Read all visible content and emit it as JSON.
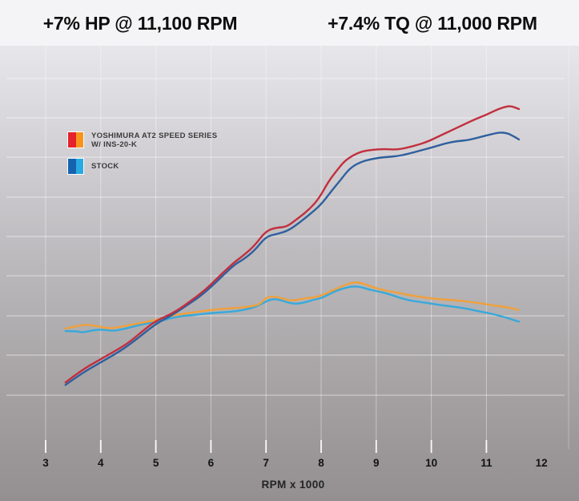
{
  "header": {
    "hp_gain": "+7% HP @ 11,100 RPM",
    "tq_gain": "+7.4% TQ @ 11,000 RPM"
  },
  "legend": {
    "items": [
      {
        "label_line1": "YOSHIMURA AT2 SPEED SERIES",
        "label_line2": "W/ INS-20-K",
        "swatch_left": "#e5212b",
        "swatch_right": "#f7941d"
      },
      {
        "label_line1": "STOCK",
        "label_line2": "",
        "swatch_left": "#1563ae",
        "swatch_right": "#29a9e1"
      }
    ]
  },
  "x_axis": {
    "label": "RPM x 1000",
    "tick_labels": [
      "3",
      "4",
      "5",
      "6",
      "7",
      "8",
      "9",
      "10",
      "11",
      "12"
    ]
  },
  "chart_data": {
    "type": "line",
    "title": "Dyno comparison: Yoshimura AT2 Speed Series vs Stock",
    "xlabel": "RPM x 1000",
    "ylabel": "",
    "x_ticks": [
      3,
      4,
      5,
      6,
      7,
      8,
      9,
      10,
      11,
      12
    ],
    "x_ticks_with_gridline": [
      3,
      4,
      5,
      6,
      7,
      8,
      9,
      10,
      11
    ],
    "y_axis_note": "no y-axis scale shown; values are percent of plot height (0=bottom, 100=top)",
    "grid": true,
    "legend_position": "upper-left",
    "annotations": [
      "+7% HP @ 11,100 RPM",
      "+7.4% TQ @ 11,000 RPM"
    ],
    "series": [
      {
        "id": "tq_stock",
        "name": "STOCK (torque)",
        "color": "#38a9db",
        "points": [
          [
            3.36,
            30.6
          ],
          [
            3.55,
            30.6
          ],
          [
            3.68,
            30.2
          ],
          [
            3.84,
            30.8
          ],
          [
            4.03,
            31.0
          ],
          [
            4.21,
            30.6
          ],
          [
            4.38,
            31.0
          ],
          [
            4.57,
            31.6
          ],
          [
            4.79,
            32.4
          ],
          [
            5.0,
            32.7
          ],
          [
            5.25,
            33.7
          ],
          [
            5.49,
            34.3
          ],
          [
            5.7,
            34.5
          ],
          [
            5.92,
            34.9
          ],
          [
            6.14,
            35.1
          ],
          [
            6.36,
            35.3
          ],
          [
            6.58,
            35.7
          ],
          [
            6.77,
            36.3
          ],
          [
            6.92,
            37.2
          ],
          [
            7.06,
            38.2
          ],
          [
            7.17,
            38.4
          ],
          [
            7.3,
            38.0
          ],
          [
            7.43,
            37.4
          ],
          [
            7.56,
            37.2
          ],
          [
            7.71,
            37.6
          ],
          [
            7.86,
            38.2
          ],
          [
            8.0,
            38.6
          ],
          [
            8.15,
            39.6
          ],
          [
            8.29,
            40.5
          ],
          [
            8.44,
            41.1
          ],
          [
            8.58,
            41.5
          ],
          [
            8.73,
            41.3
          ],
          [
            8.87,
            40.7
          ],
          [
            9.05,
            40.2
          ],
          [
            9.24,
            39.6
          ],
          [
            9.44,
            38.6
          ],
          [
            9.63,
            38.0
          ],
          [
            9.83,
            37.6
          ],
          [
            10.03,
            37.2
          ],
          [
            10.24,
            36.8
          ],
          [
            10.43,
            36.5
          ],
          [
            10.63,
            36.1
          ],
          [
            10.82,
            35.5
          ],
          [
            11.0,
            35.1
          ],
          [
            11.19,
            34.5
          ],
          [
            11.36,
            33.9
          ],
          [
            11.49,
            33.3
          ],
          [
            11.59,
            32.9
          ]
        ]
      },
      {
        "id": "tq_yoshimura",
        "name": "YOSHIMURA AT2 SPEED SERIES W/ INS-20-K (torque)",
        "color": "#efa03c",
        "points": [
          [
            3.36,
            31.2
          ],
          [
            3.55,
            31.8
          ],
          [
            3.74,
            32.2
          ],
          [
            3.94,
            31.8
          ],
          [
            4.15,
            31.2
          ],
          [
            4.35,
            31.6
          ],
          [
            4.57,
            32.2
          ],
          [
            4.79,
            32.7
          ],
          [
            5.0,
            33.3
          ],
          [
            5.22,
            34.1
          ],
          [
            5.44,
            34.7
          ],
          [
            5.66,
            35.1
          ],
          [
            5.88,
            35.5
          ],
          [
            6.1,
            35.9
          ],
          [
            6.31,
            36.1
          ],
          [
            6.53,
            36.3
          ],
          [
            6.75,
            36.6
          ],
          [
            6.9,
            37.2
          ],
          [
            7.0,
            38.8
          ],
          [
            7.14,
            39.0
          ],
          [
            7.29,
            38.6
          ],
          [
            7.43,
            38.0
          ],
          [
            7.58,
            38.2
          ],
          [
            7.72,
            38.6
          ],
          [
            7.87,
            38.8
          ],
          [
            8.0,
            39.2
          ],
          [
            8.16,
            40.2
          ],
          [
            8.31,
            41.1
          ],
          [
            8.45,
            41.9
          ],
          [
            8.6,
            42.5
          ],
          [
            8.74,
            42.3
          ],
          [
            8.89,
            41.5
          ],
          [
            9.08,
            40.7
          ],
          [
            9.27,
            40.2
          ],
          [
            9.44,
            39.8
          ],
          [
            9.66,
            39.2
          ],
          [
            9.87,
            38.8
          ],
          [
            10.09,
            38.4
          ],
          [
            10.31,
            38.2
          ],
          [
            10.53,
            38.0
          ],
          [
            10.75,
            37.6
          ],
          [
            10.97,
            37.2
          ],
          [
            11.15,
            36.8
          ],
          [
            11.33,
            36.5
          ],
          [
            11.48,
            36.1
          ],
          [
            11.58,
            35.7
          ]
        ]
      },
      {
        "id": "hp_stock",
        "name": "STOCK (horsepower)",
        "color": "#2e5f9e",
        "points": [
          [
            3.36,
            17.5
          ],
          [
            3.63,
            20.1
          ],
          [
            4.0,
            23.0
          ],
          [
            4.35,
            25.7
          ],
          [
            4.64,
            28.5
          ],
          [
            5.0,
            32.4
          ],
          [
            5.3,
            34.5
          ],
          [
            5.5,
            36.3
          ],
          [
            5.8,
            39.0
          ],
          [
            6.0,
            41.3
          ],
          [
            6.2,
            43.9
          ],
          [
            6.43,
            46.8
          ],
          [
            6.6,
            48.1
          ],
          [
            6.8,
            50.3
          ],
          [
            7.0,
            53.6
          ],
          [
            7.2,
            54.2
          ],
          [
            7.4,
            55.0
          ],
          [
            7.62,
            57.1
          ],
          [
            7.84,
            59.5
          ],
          [
            8.0,
            61.4
          ],
          [
            8.19,
            64.7
          ],
          [
            8.35,
            67.3
          ],
          [
            8.52,
            70.2
          ],
          [
            8.71,
            71.7
          ],
          [
            8.93,
            72.5
          ],
          [
            9.15,
            72.9
          ],
          [
            9.37,
            73.1
          ],
          [
            9.58,
            73.7
          ],
          [
            9.8,
            74.5
          ],
          [
            10.0,
            75.2
          ],
          [
            10.24,
            76.2
          ],
          [
            10.46,
            76.8
          ],
          [
            10.67,
            77.0
          ],
          [
            10.89,
            77.8
          ],
          [
            11.07,
            78.4
          ],
          [
            11.23,
            78.9
          ],
          [
            11.37,
            78.8
          ],
          [
            11.49,
            78.0
          ],
          [
            11.59,
            77.2
          ]
        ]
      },
      {
        "id": "hp_yoshimura",
        "name": "YOSHIMURA AT2 SPEED SERIES W/ INS-20-K (horsepower)",
        "color": "#c22f3e",
        "points": [
          [
            3.36,
            18.1
          ],
          [
            3.63,
            20.9
          ],
          [
            4.0,
            23.8
          ],
          [
            4.28,
            25.9
          ],
          [
            4.5,
            27.7
          ],
          [
            4.76,
            30.6
          ],
          [
            5.0,
            33.1
          ],
          [
            5.27,
            34.7
          ],
          [
            5.5,
            36.6
          ],
          [
            5.8,
            39.6
          ],
          [
            6.0,
            41.9
          ],
          [
            6.2,
            44.6
          ],
          [
            6.43,
            47.4
          ],
          [
            6.6,
            49.1
          ],
          [
            6.8,
            51.5
          ],
          [
            7.0,
            55.0
          ],
          [
            7.2,
            55.8
          ],
          [
            7.37,
            55.9
          ],
          [
            7.55,
            57.7
          ],
          [
            7.77,
            60.0
          ],
          [
            7.96,
            62.8
          ],
          [
            8.13,
            66.9
          ],
          [
            8.28,
            69.6
          ],
          [
            8.42,
            71.9
          ],
          [
            8.57,
            73.3
          ],
          [
            8.74,
            74.3
          ],
          [
            8.93,
            74.7
          ],
          [
            9.15,
            74.9
          ],
          [
            9.37,
            74.7
          ],
          [
            9.56,
            75.2
          ],
          [
            9.73,
            75.8
          ],
          [
            9.92,
            76.6
          ],
          [
            10.14,
            78.0
          ],
          [
            10.35,
            79.3
          ],
          [
            10.57,
            80.7
          ],
          [
            10.79,
            82.1
          ],
          [
            11.0,
            83.2
          ],
          [
            11.15,
            84.2
          ],
          [
            11.3,
            85.0
          ],
          [
            11.44,
            85.4
          ],
          [
            11.59,
            84.6
          ]
        ]
      }
    ]
  },
  "colors": {
    "top_band": "#f4f4f6",
    "plot_gradient_top": "#e7e7eb",
    "plot_gradient_bottom": "#949092",
    "gridline": "#ffffff",
    "title_text": "#0d0d0d",
    "tick_text": "#131313"
  }
}
